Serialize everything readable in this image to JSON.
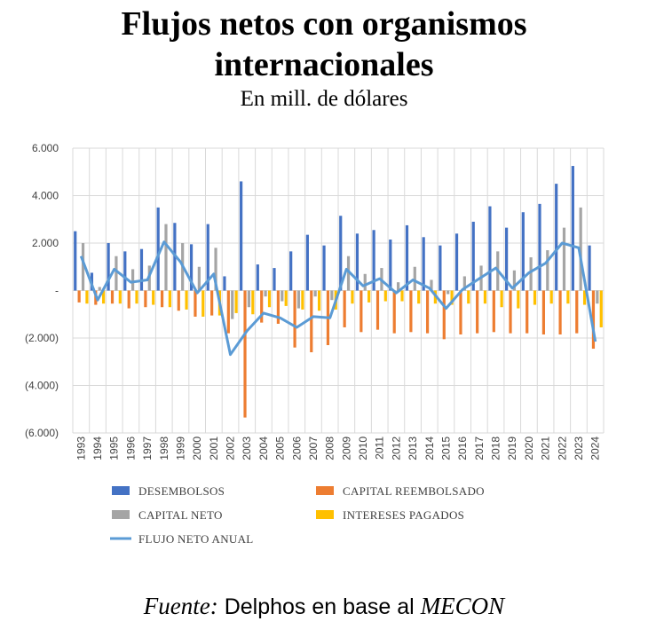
{
  "title_line1": "Flujos netos con organismos",
  "title_line2": "internacionales",
  "subtitle": "En mill. de dólares",
  "source": {
    "prefix": "Fuente:",
    "middle": " Delphos en base al ",
    "suffix": "MECON"
  },
  "colors": {
    "desembolsos": "#4472C4",
    "capital_reembolsado": "#ED7D31",
    "capital_neto": "#A5A5A5",
    "intereses_pagados": "#FFC000",
    "flujo_neto_anual": "#5B9BD5",
    "grid": "#D9D9D9"
  },
  "chart_data": {
    "type": "bar",
    "ylim": [
      -6000,
      6000
    ],
    "yticks": [
      6000,
      4000,
      2000,
      0,
      -2000,
      -4000,
      -6000
    ],
    "ytick_labels": [
      "6.000",
      "4.000",
      "2.000",
      "-",
      "(2.000)",
      "(4.000)",
      "(6.000)"
    ],
    "grid": true,
    "legend_position": "bottom",
    "categories": [
      "1993",
      "1994",
      "1995",
      "1996",
      "1997",
      "1998",
      "1999",
      "2000",
      "2001",
      "2002",
      "2003",
      "2004",
      "2005",
      "2006",
      "2007",
      "2008",
      "2009",
      "2010",
      "2011",
      "2012",
      "2013",
      "2014",
      "2015",
      "2016",
      "2017",
      "2018",
      "2019",
      "2020",
      "2021",
      "2022",
      "2023",
      "2024"
    ],
    "series": [
      {
        "name": "DESEMBOLSOS",
        "type": "bar",
        "values": [
          2500,
          750,
          2000,
          1650,
          1750,
          3500,
          2850,
          1950,
          2800,
          600,
          4600,
          1100,
          950,
          1650,
          2350,
          1900,
          3150,
          2400,
          2550,
          2150,
          2750,
          2250,
          1900,
          2400,
          2900,
          3550,
          2650,
          3300,
          3650,
          4500,
          5250,
          1900
        ]
      },
      {
        "name": "CAPITAL REEMBOLSADO",
        "type": "bar",
        "values": [
          -500,
          -600,
          -550,
          -750,
          -700,
          -700,
          -850,
          -1100,
          -1050,
          -1800,
          -5350,
          -1350,
          -1400,
          -2400,
          -2600,
          -2300,
          -1550,
          -1750,
          -1650,
          -1800,
          -1750,
          -1800,
          -2050,
          -1850,
          -1800,
          -1750,
          -1800,
          -1800,
          -1850,
          -1850,
          -1800,
          -2450
        ]
      },
      {
        "name": "CAPITAL NETO",
        "type": "bar",
        "values": [
          2000,
          150,
          1450,
          900,
          1050,
          2800,
          2000,
          1000,
          1800,
          -1200,
          -700,
          -250,
          -450,
          -750,
          -250,
          -400,
          1450,
          700,
          950,
          350,
          1000,
          450,
          -150,
          600,
          1050,
          1650,
          850,
          1400,
          1700,
          2650,
          3500,
          -550
        ]
      },
      {
        "name": "INTERESES PAGADOS",
        "type": "bar",
        "values": [
          -550,
          -550,
          -550,
          -550,
          -600,
          -700,
          -800,
          -1100,
          -1050,
          -950,
          -1000,
          -700,
          -650,
          -800,
          -850,
          -800,
          -550,
          -500,
          -450,
          -450,
          -550,
          -550,
          -600,
          -550,
          -550,
          -700,
          -750,
          -600,
          -550,
          -550,
          -600,
          -1550
        ]
      },
      {
        "name": "FLUJO NETO ANUAL",
        "type": "line",
        "values": [
          1450,
          -400,
          900,
          350,
          450,
          2050,
          1200,
          -100,
          700,
          -2700,
          -1700,
          -950,
          -1150,
          -1550,
          -1100,
          -1150,
          900,
          200,
          500,
          -100,
          450,
          100,
          -750,
          50,
          500,
          950,
          100,
          750,
          1150,
          2000,
          1800,
          -2150
        ]
      }
    ]
  }
}
